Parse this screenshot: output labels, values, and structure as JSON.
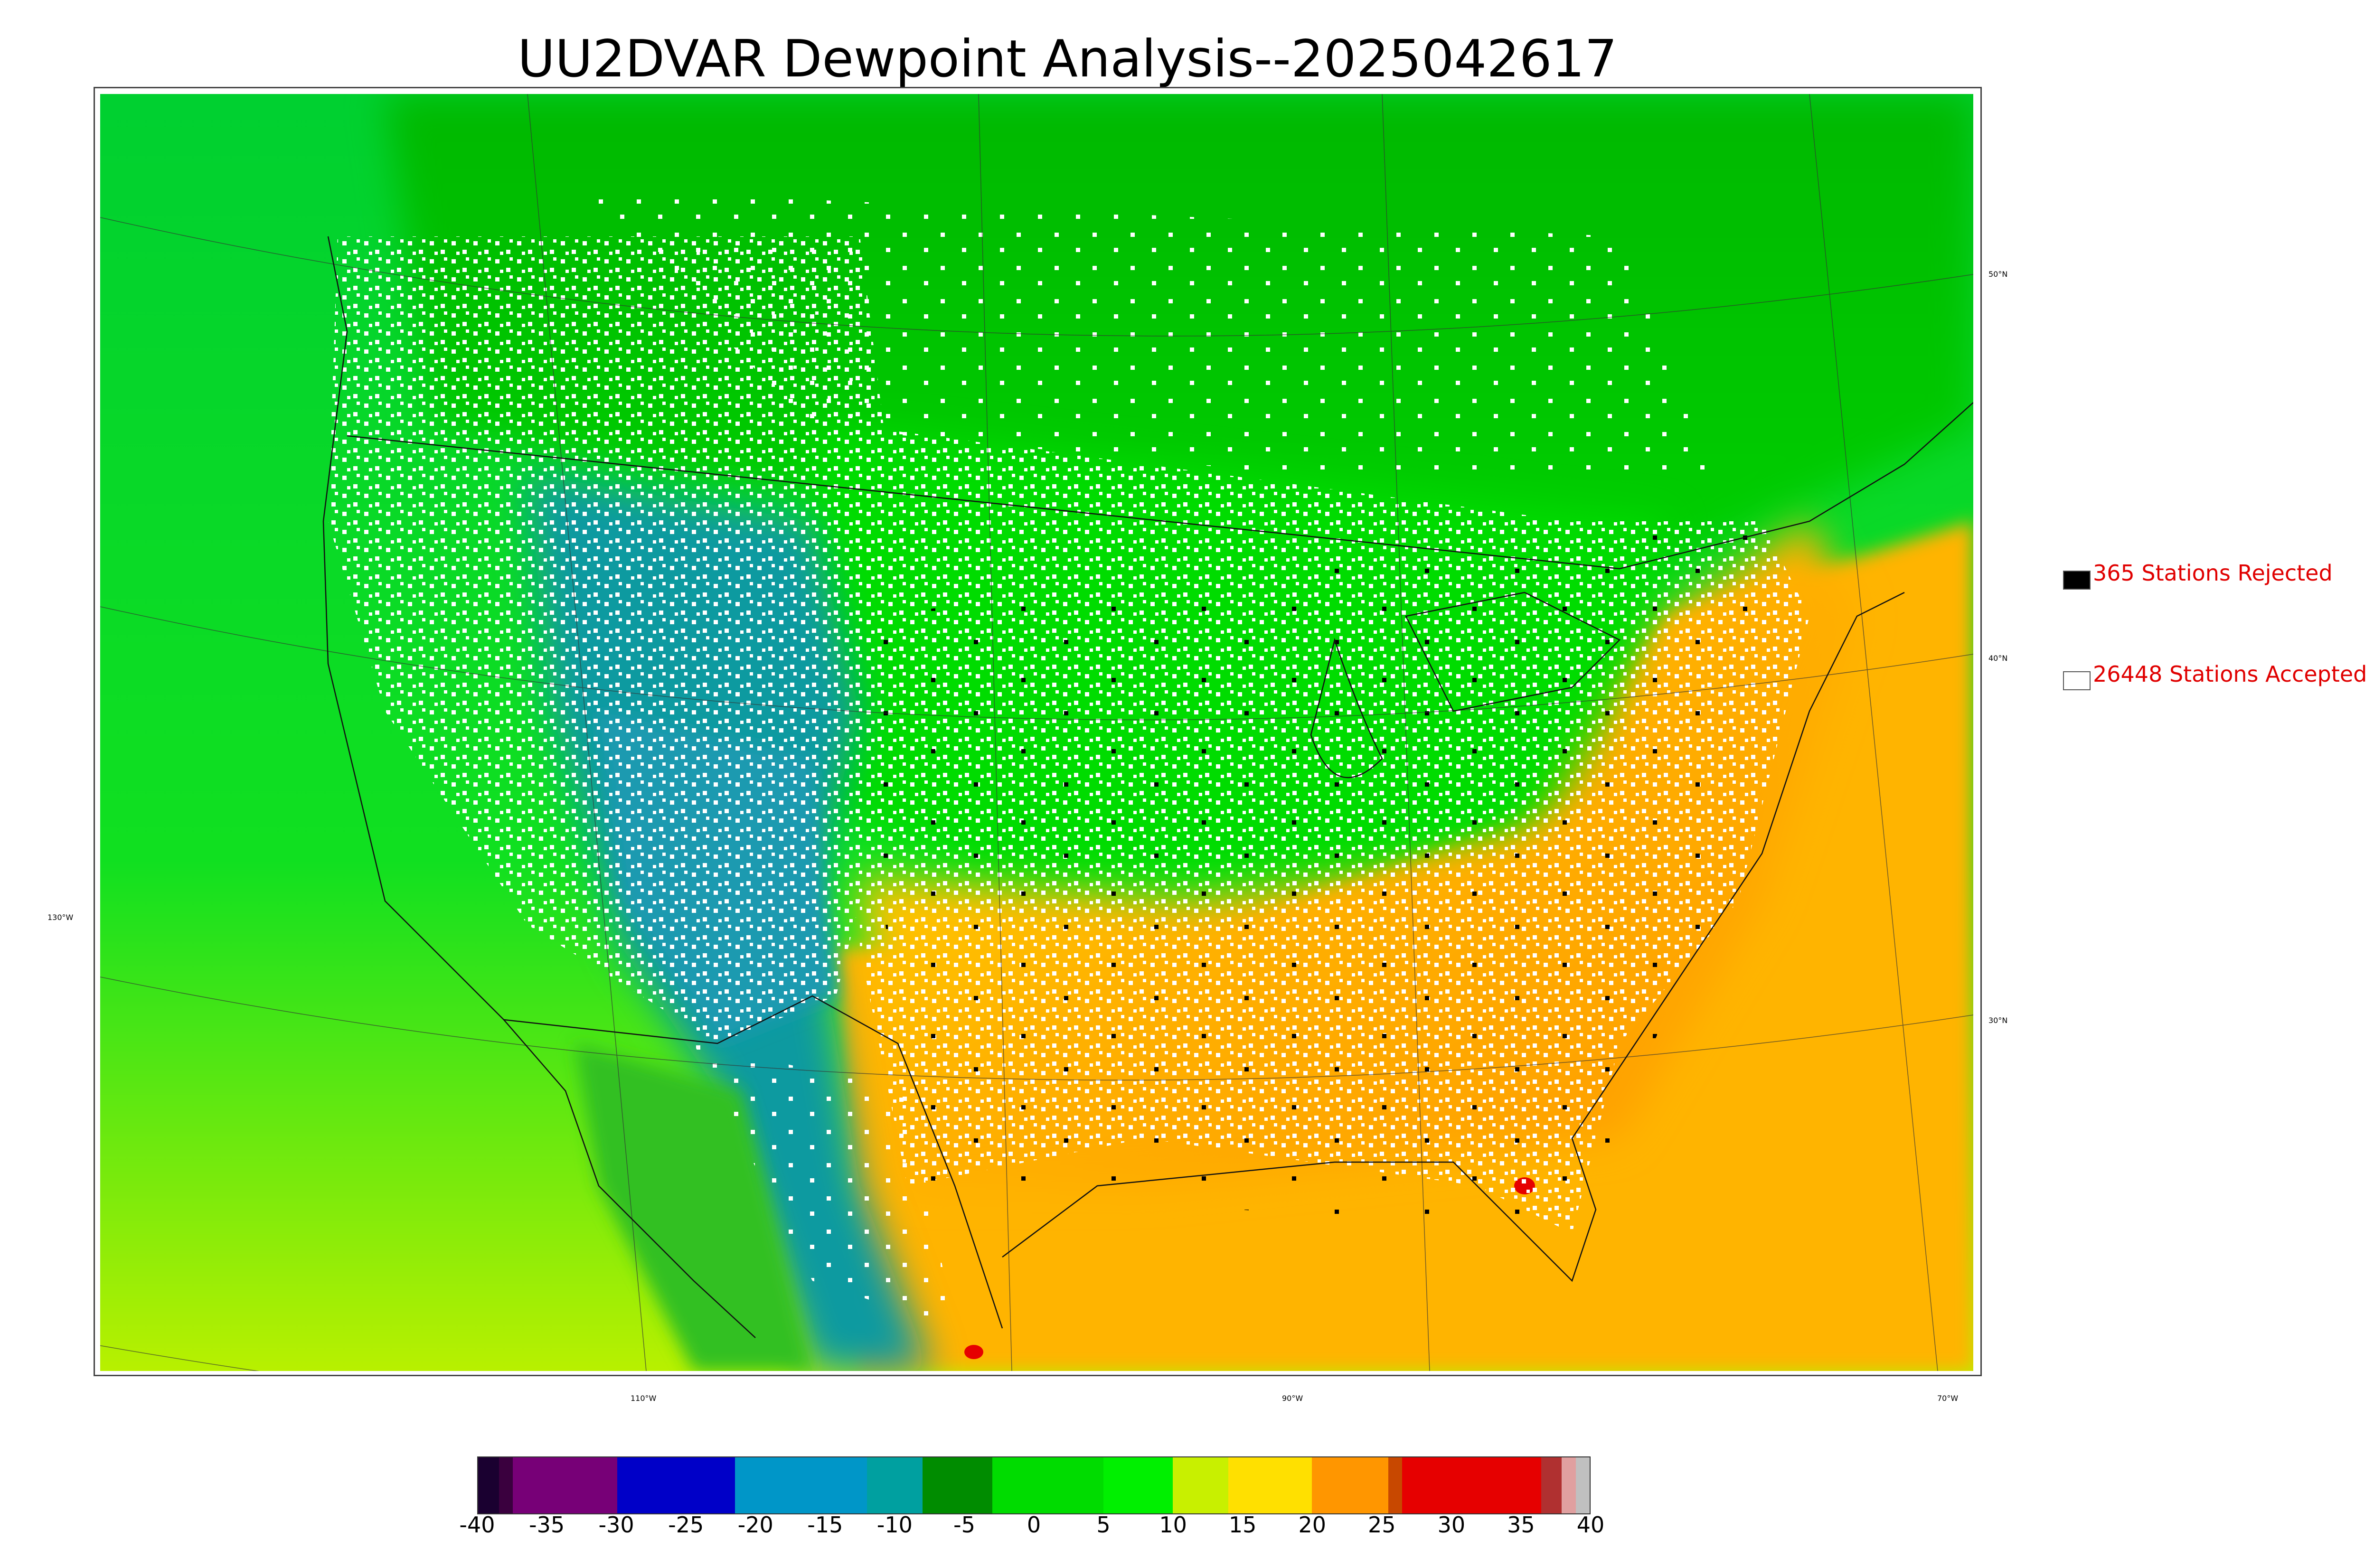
{
  "title": "UU2DVAR Dewpoint Analysis--2025042617",
  "lat_labels": [
    {
      "text": "50°N"
    },
    {
      "text": "40°N"
    },
    {
      "text": "30°N"
    }
  ],
  "lon_labels": [
    {
      "text": "130°W"
    },
    {
      "text": "110°W"
    },
    {
      "text": "90°W"
    },
    {
      "text": "70°W"
    }
  ],
  "legend": {
    "rejected": {
      "count_text": "365 Stations Rejected",
      "color": "#000000"
    },
    "accepted": {
      "count_text": "26448 Stations Accepted",
      "color": "#ffffff"
    }
  },
  "colorbar": {
    "ticks": [
      "-40",
      "-35",
      "-30",
      "-25",
      "-20",
      "-15",
      "-10",
      "-5",
      "0",
      "5",
      "10",
      "15",
      "20",
      "25",
      "30",
      "35",
      "40"
    ],
    "range": [
      -40,
      40
    ],
    "segments": [
      {
        "from": -40,
        "to": -38.5,
        "color": "#1a0030"
      },
      {
        "from": -38.5,
        "to": -37.5,
        "color": "#3a003e"
      },
      {
        "from": -37.5,
        "to": -30,
        "color": "#770077"
      },
      {
        "from": -30,
        "to": -21.5,
        "color": "#0000c8"
      },
      {
        "from": -21.5,
        "to": -12,
        "color": "#0096c8"
      },
      {
        "from": -12,
        "to": -8,
        "color": "#00a0a0"
      },
      {
        "from": -8,
        "to": -3,
        "color": "#008c00"
      },
      {
        "from": -3,
        "to": 5,
        "color": "#00dc00"
      },
      {
        "from": 5,
        "to": 10,
        "color": "#00f000"
      },
      {
        "from": 10,
        "to": 14,
        "color": "#c8f000"
      },
      {
        "from": 14,
        "to": 20,
        "color": "#ffe000"
      },
      {
        "from": 20,
        "to": 25.5,
        "color": "#ff9600"
      },
      {
        "from": 25.5,
        "to": 26.5,
        "color": "#c84800"
      },
      {
        "from": 26.5,
        "to": 36.5,
        "color": "#e60000"
      },
      {
        "from": 36.5,
        "to": 38,
        "color": "#b03030"
      },
      {
        "from": 38,
        "to": 39,
        "color": "#e0a0a0"
      },
      {
        "from": 39,
        "to": 40,
        "color": "#c0c0c0"
      }
    ]
  },
  "map": {
    "field": "dewpoint",
    "colors": {
      "ocean_pacific": "#00dc28",
      "ocean_gulf_atlantic": "#ffb400",
      "canada": "#00c800",
      "rockies": "#0096a0",
      "plains": "#00d200",
      "southeast": "#ffaa00",
      "florida_hot": "#e60000"
    }
  }
}
